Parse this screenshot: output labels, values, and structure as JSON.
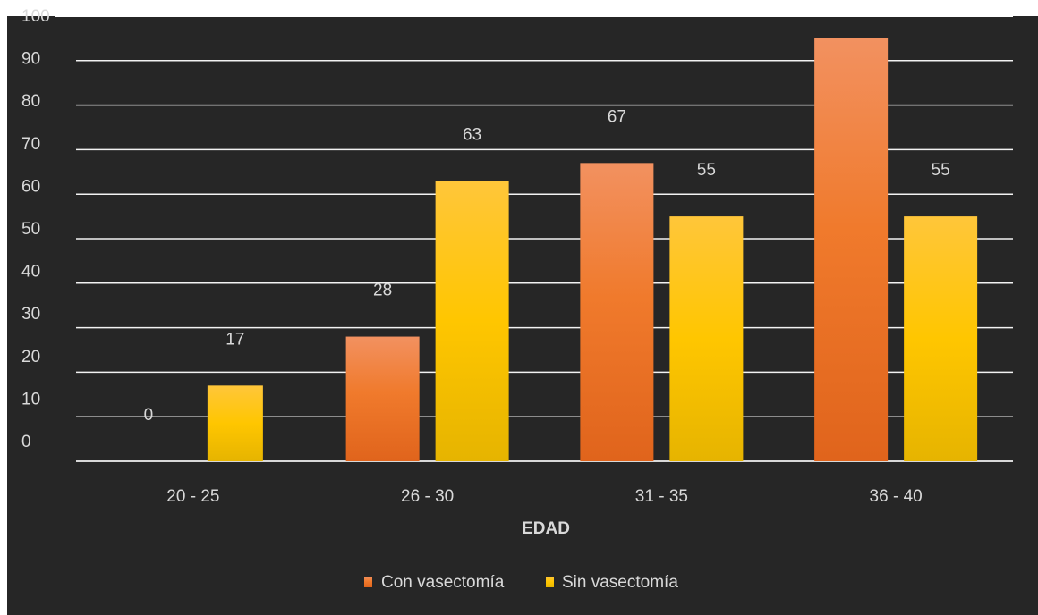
{
  "chart_data": {
    "type": "bar",
    "categories": [
      "20 - 25",
      "26 - 30",
      "31 - 35",
      "36 - 40"
    ],
    "series": [
      {
        "name": "Con vasectomía",
        "values": [
          0,
          28,
          67,
          95
        ],
        "color": "#ef7b2e"
      },
      {
        "name": "Sin vasectomía",
        "values": [
          17,
          63,
          55,
          55
        ],
        "color": "#ffc514"
      }
    ],
    "xlabel": "EDAD",
    "ylabel": "",
    "ylim": [
      0,
      100
    ],
    "yticks": [
      0,
      10,
      20,
      30,
      40,
      50,
      60,
      70,
      80,
      90,
      100
    ],
    "grid": true,
    "legend_position": "bottom",
    "background": "#262626"
  }
}
